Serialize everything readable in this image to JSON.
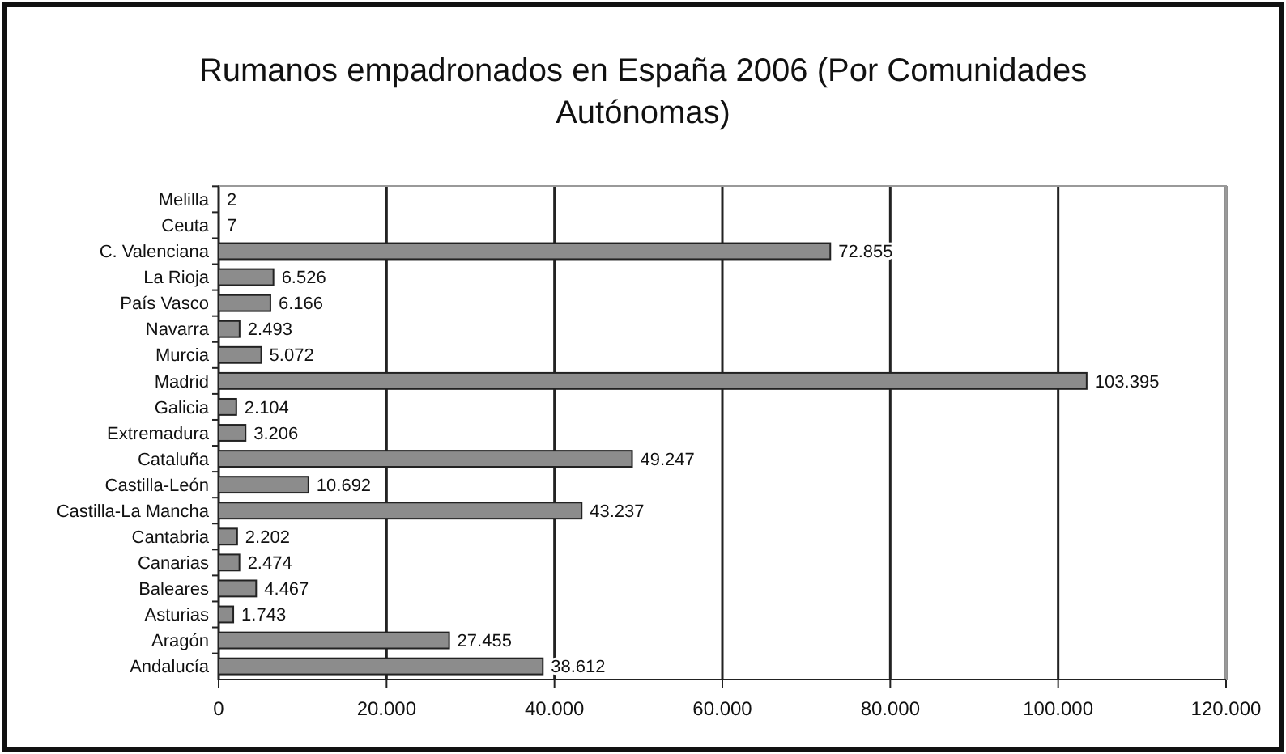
{
  "chart_data": {
    "type": "bar",
    "orientation": "horizontal",
    "title": "Rumanos empadronados en España 2006 (Por Comunidades Autónomas)",
    "categories": [
      "Melilla",
      "Ceuta",
      "C. Valenciana",
      "La Rioja",
      "País Vasco",
      "Navarra",
      "Murcia",
      "Madrid",
      "Galicia",
      "Extremadura",
      "Cataluña",
      "Castilla-León",
      "Castilla-La Mancha",
      "Cantabria",
      "Canarias",
      "Baleares",
      "Asturias",
      "Aragón",
      "Andalucía"
    ],
    "values": [
      2,
      7,
      72855,
      6526,
      6166,
      2493,
      5072,
      103395,
      2104,
      3206,
      49247,
      10692,
      43237,
      2202,
      2474,
      4467,
      1743,
      27455,
      38612
    ],
    "value_labels": [
      "2",
      "7",
      "72.855",
      "6.526",
      "6.166",
      "2.493",
      "5.072",
      "103.395",
      "2.104",
      "3.206",
      "49.247",
      "10.692",
      "43.237",
      "2.202",
      "2.474",
      "4.467",
      "1.743",
      "27.455",
      "38.612"
    ],
    "color": "#8c8c8c",
    "xlim": [
      0,
      120000
    ],
    "xticks": [
      {
        "value": 0,
        "label": "0"
      },
      {
        "value": 20000,
        "label": "20.000"
      },
      {
        "value": 40000,
        "label": "40.000"
      },
      {
        "value": 60000,
        "label": "60.000"
      },
      {
        "value": 80000,
        "label": "80.000"
      },
      {
        "value": 100000,
        "label": "100.000"
      },
      {
        "value": 120000,
        "label": "120.000"
      }
    ],
    "grid": "x"
  }
}
